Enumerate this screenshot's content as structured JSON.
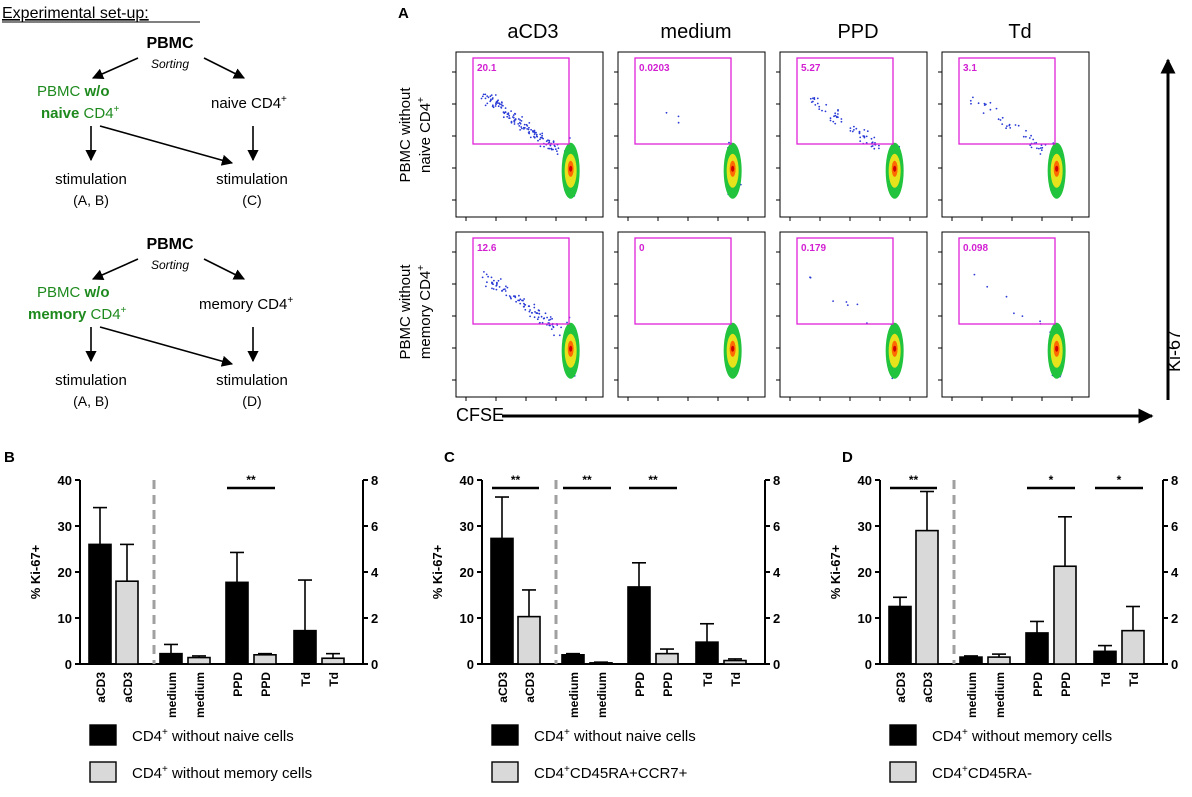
{
  "setup": {
    "title": "Experimental set-up:",
    "pbmc": "PBMC",
    "sorting": "Sorting",
    "scheme1": {
      "wo_prefix": "PBMC ",
      "wo_bold": "w/o",
      "wo_bold2": "naive",
      "wo_cell": " CD4",
      "sup": "+",
      "other": "naive CD4",
      "stimA": "stimulation",
      "stimA2": "(A, B)",
      "stimB": "stimulation",
      "stimB2": "(C)"
    },
    "scheme2": {
      "wo_prefix": "PBMC ",
      "wo_bold": "w/o",
      "wo_bold2": "memory",
      "wo_cell": " CD4",
      "sup": "+",
      "other": "memory CD4",
      "stimA": "stimulation",
      "stimA2": "(A, B)",
      "stimB": "stimulation",
      "stimB2": "(D)"
    }
  },
  "flow": {
    "panel_label": "A",
    "columns": [
      "aCD3",
      "medium",
      "PPD",
      "Td"
    ],
    "rows": [
      {
        "label1": "PBMC without",
        "label2": "naive CD4",
        "sup": "+",
        "gates": [
          "20.1",
          "0.0203",
          "5.27",
          "3.1"
        ]
      },
      {
        "label1": "PBMC without",
        "label2": "memory CD4",
        "sup": "+",
        "gates": [
          "12.6",
          "0",
          "0.179",
          "0.098"
        ]
      }
    ],
    "xaxis": "CFSE",
    "yaxis": "Ki-67"
  },
  "chart_data": [
    {
      "type": "bar",
      "panel": "B",
      "ylabel": "% Ki-67+",
      "ylim": [
        0,
        40
      ],
      "ylim_right": [
        0,
        8
      ],
      "yticks": [
        "0",
        "10",
        "20",
        "30",
        "40"
      ],
      "yticks_right": [
        "0",
        "2",
        "4",
        "6",
        "8"
      ],
      "categories": [
        "aCD3",
        "aCD3",
        "medium",
        "medium",
        "PPD",
        "PPD",
        "Td",
        "Td"
      ],
      "fills": [
        "black",
        "grey",
        "black",
        "grey",
        "black",
        "grey",
        "black",
        "grey"
      ],
      "axis": [
        "left",
        "left",
        "right",
        "right",
        "right",
        "right",
        "right",
        "right"
      ],
      "values": [
        26,
        18,
        0.45,
        0.28,
        3.55,
        0.4,
        1.45,
        0.25
      ],
      "errors": [
        8,
        8,
        0.4,
        0.07,
        1.3,
        0.05,
        2.2,
        0.2
      ],
      "significance": [
        {
          "from": 4,
          "to": 5,
          "label": "**"
        }
      ],
      "legend": [
        {
          "fill": "black",
          "text": "CD4",
          "sup": "+",
          "rest": " without naive cells"
        },
        {
          "fill": "grey",
          "text": "CD4",
          "sup": "+",
          "rest": " without memory cells"
        }
      ]
    },
    {
      "type": "bar",
      "panel": "C",
      "ylabel": "% Ki-67+",
      "ylim": [
        0,
        40
      ],
      "ylim_right": [
        0,
        8
      ],
      "yticks": [
        "0",
        "10",
        "20",
        "30",
        "40"
      ],
      "yticks_right": [
        "0",
        "2",
        "4",
        "6",
        "8"
      ],
      "categories": [
        "aCD3",
        "aCD3",
        "medium",
        "medium",
        "PPD",
        "PPD",
        "Td",
        "Td"
      ],
      "fills": [
        "black",
        "grey",
        "black",
        "grey",
        "black",
        "grey",
        "black",
        "grey"
      ],
      "axis": [
        "left",
        "left",
        "right",
        "right",
        "right",
        "right",
        "right",
        "right"
      ],
      "values": [
        27.3,
        10.3,
        0.4,
        0.05,
        3.35,
        0.45,
        0.95,
        0.15
      ],
      "errors": [
        9,
        5.8,
        0.05,
        0.03,
        1.05,
        0.2,
        0.8,
        0.07
      ],
      "significance": [
        {
          "from": 0,
          "to": 1,
          "label": "**"
        },
        {
          "from": 2,
          "to": 3,
          "label": "**"
        },
        {
          "from": 4,
          "to": 5,
          "label": "**"
        }
      ],
      "legend": [
        {
          "fill": "black",
          "text": "CD4",
          "sup": "+",
          "rest": " without naive cells"
        },
        {
          "fill": "grey",
          "text": "CD4",
          "sup": "+",
          "rest": "CD45RA+CCR7+"
        }
      ]
    },
    {
      "type": "bar",
      "panel": "D",
      "ylabel": "% Ki-67+",
      "ylim": [
        0,
        40
      ],
      "ylim_right": [
        0,
        8
      ],
      "yticks": [
        "0",
        "10",
        "20",
        "30",
        "40"
      ],
      "yticks_right": [
        "0",
        "2",
        "4",
        "6",
        "8"
      ],
      "categories": [
        "aCD3",
        "aCD3",
        "medium",
        "medium",
        "PPD",
        "PPD",
        "Td",
        "Td"
      ],
      "fills": [
        "black",
        "grey",
        "black",
        "grey",
        "black",
        "grey",
        "black",
        "grey"
      ],
      "axis": [
        "left",
        "left",
        "right",
        "right",
        "right",
        "right",
        "right",
        "right"
      ],
      "values": [
        12.5,
        29,
        0.3,
        0.3,
        1.35,
        4.25,
        0.55,
        1.45
      ],
      "errors": [
        2,
        8.5,
        0.05,
        0.13,
        0.5,
        2.15,
        0.25,
        1.05
      ],
      "significance": [
        {
          "from": 0,
          "to": 1,
          "label": "**"
        },
        {
          "from": 4,
          "to": 5,
          "label": "*"
        },
        {
          "from": 6,
          "to": 7,
          "label": "*"
        }
      ],
      "legend": [
        {
          "fill": "black",
          "text": "CD4",
          "sup": "+",
          "rest": " without memory cells"
        },
        {
          "fill": "grey",
          "text": "CD4",
          "sup": "+",
          "rest": "CD45RA-"
        }
      ]
    }
  ]
}
